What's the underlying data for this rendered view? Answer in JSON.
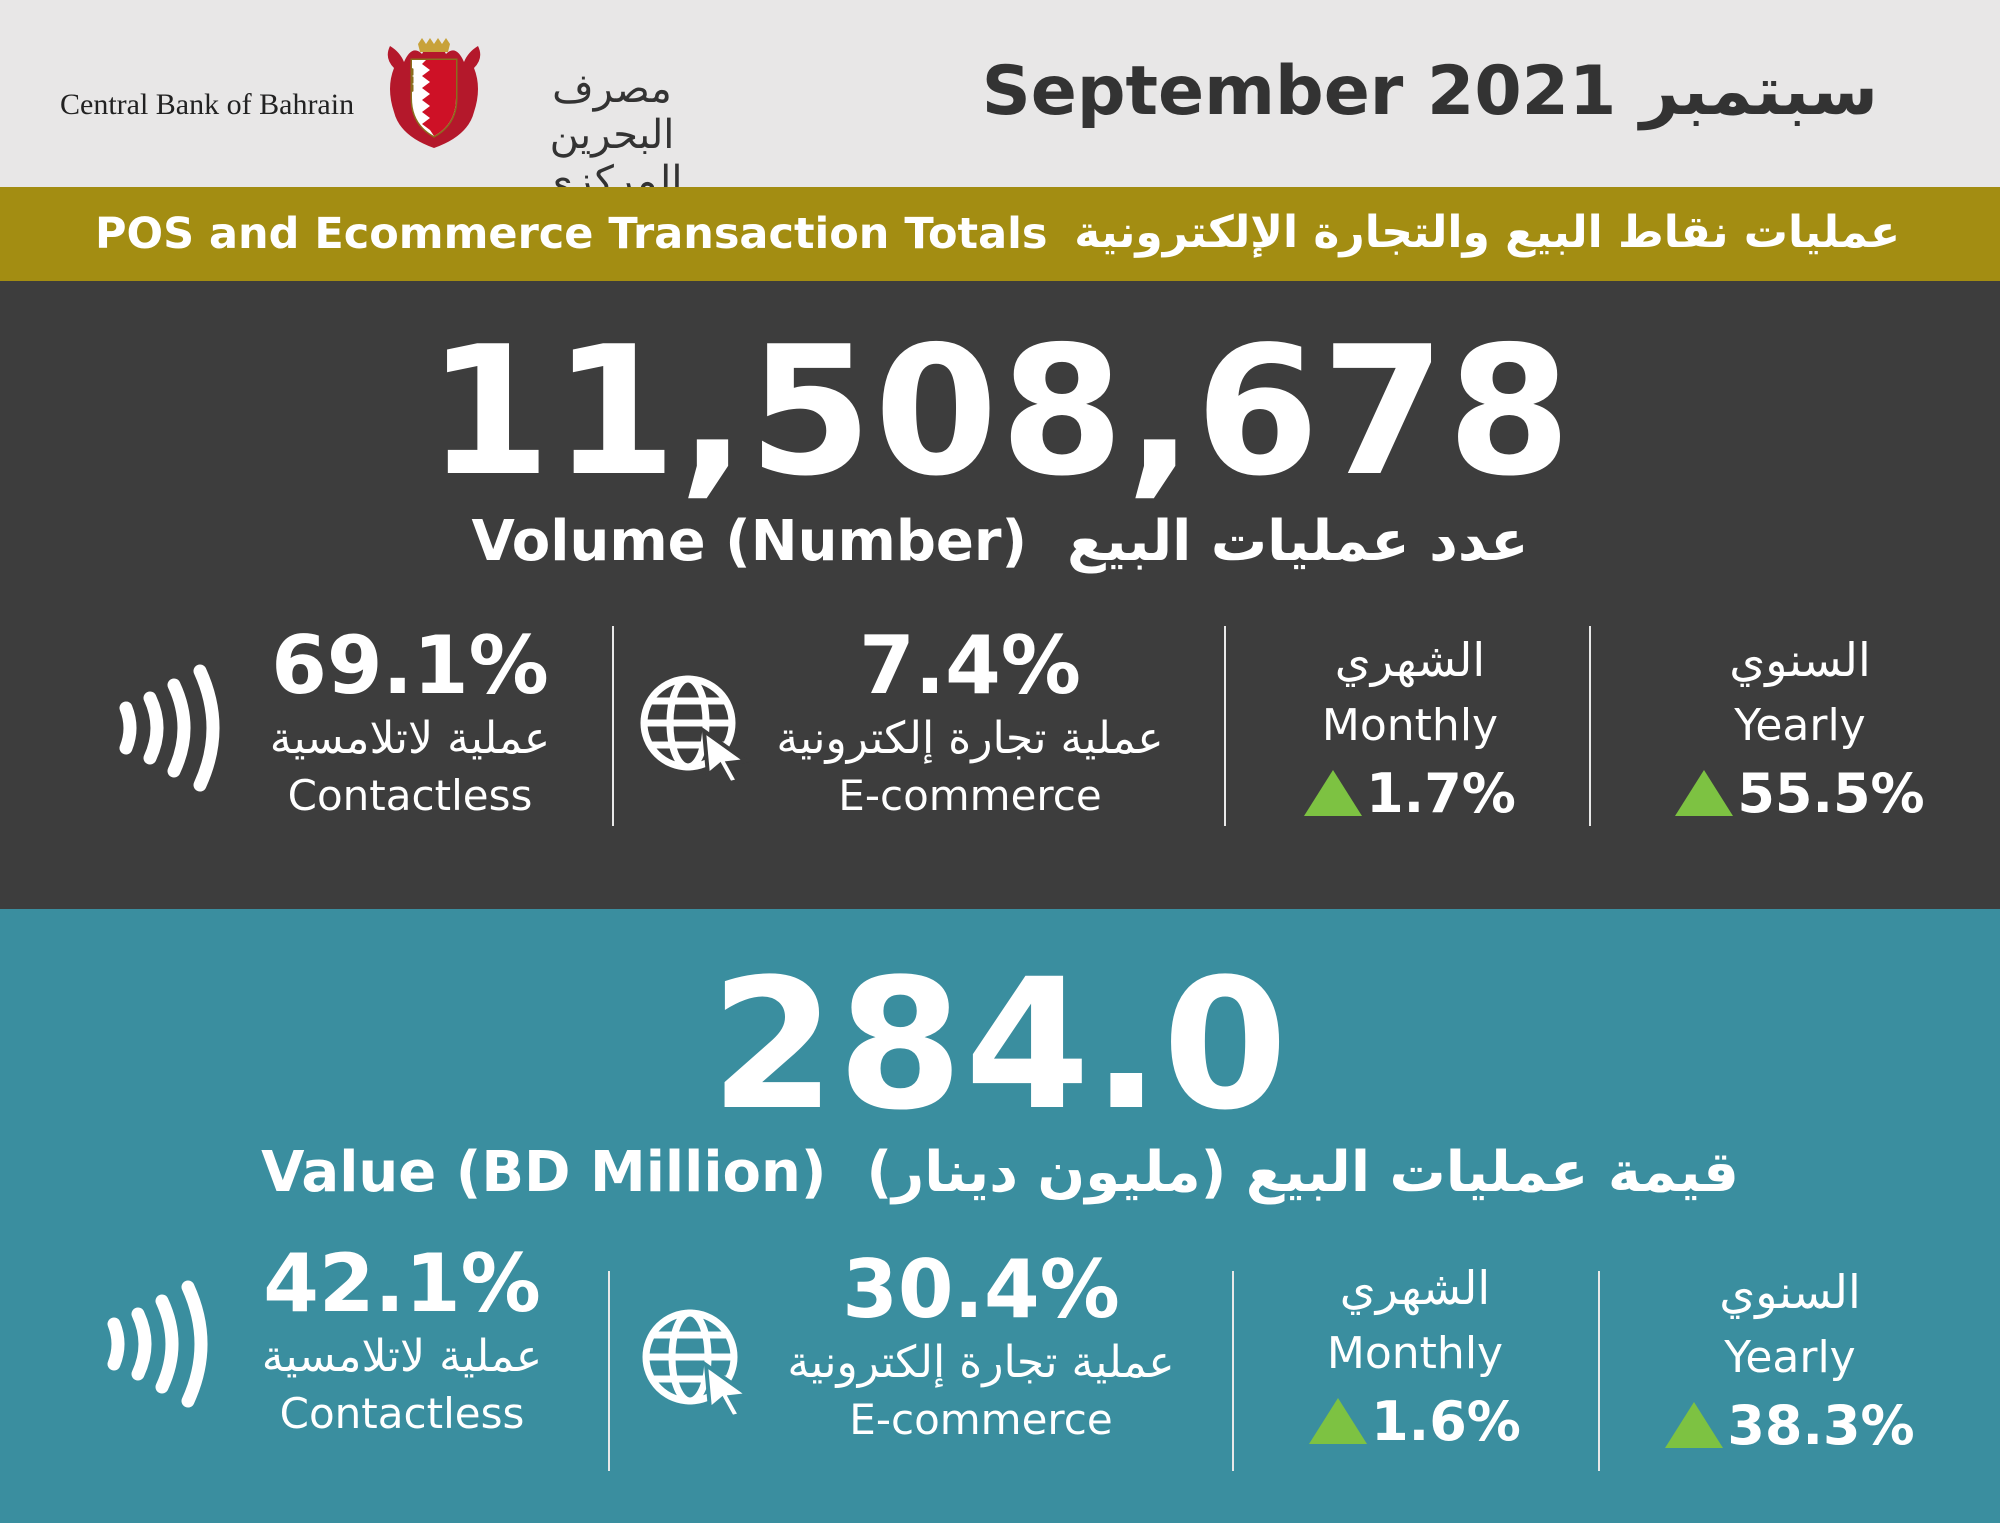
{
  "header": {
    "bank_name_en": "Central Bank of Bahrain",
    "bank_name_ar": "مصرف البحرين المركزي",
    "title": "September 2021 سبتمبر"
  },
  "band": {
    "title_en": "POS and Ecommerce Transaction Totals",
    "title_ar": "عمليات نقاط البيع والتجارة الإلكترونية"
  },
  "volume": {
    "total": "11,508,678",
    "label_en": "Volume (Number)",
    "label_ar": "عدد عمليات البيع",
    "contactless": {
      "pct": "69.1%",
      "label_ar": "عملية لاتلامسية",
      "label_en": "Contactless"
    },
    "ecommerce": {
      "pct": "7.4%",
      "label_ar": "عملية تجارة إلكترونية",
      "label_en": "E-commerce"
    },
    "monthly": {
      "label_ar": "الشهري",
      "label_en": "Monthly",
      "change": "1.7%"
    },
    "yearly": {
      "label_ar": "السنوي",
      "label_en": "Yearly",
      "change": "55.5%"
    }
  },
  "value": {
    "total": "284.0",
    "label_en": "Value (BD Million)",
    "label_ar": "قيمة عمليات البيع (مليون دينار)",
    "contactless": {
      "pct": "42.1%",
      "label_ar": "عملية لاتلامسية",
      "label_en": "Contactless"
    },
    "ecommerce": {
      "pct": "30.4%",
      "label_ar": "عملية تجارة إلكترونية",
      "label_en": "E-commerce"
    },
    "monthly": {
      "label_ar": "الشهري",
      "label_en": "Monthly",
      "change": "1.6%"
    },
    "yearly": {
      "label_ar": "السنوي",
      "label_en": "Yearly",
      "change": "38.3%"
    }
  },
  "colors": {
    "header_bg": "#e8e7e7",
    "band_bg": "#a38d12",
    "volume_bg": "#3d3d3d",
    "value_bg": "#3a8e9f",
    "up_arrow": "#7dc242"
  },
  "icons": [
    "bahrain-crest-icon",
    "contactless-icon",
    "globe-cursor-icon",
    "up-triangle-icon"
  ]
}
